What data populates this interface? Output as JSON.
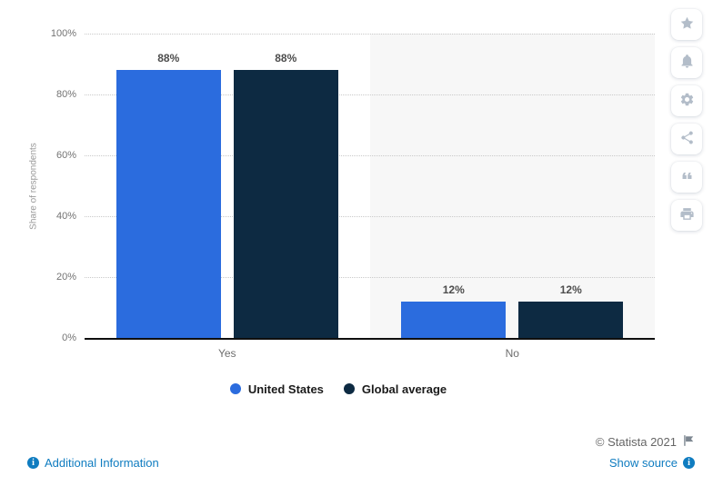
{
  "chart_data": {
    "type": "bar",
    "categories": [
      "Yes",
      "No"
    ],
    "series": [
      {
        "name": "United States",
        "color": "#2b6cde",
        "values": [
          88,
          12
        ],
        "labels": [
          "88%",
          "12%"
        ]
      },
      {
        "name": "Global average",
        "color": "#0d2a42",
        "values": [
          88,
          12
        ],
        "labels": [
          "88%",
          "12%"
        ]
      }
    ],
    "ylabel": "Share of respondents",
    "ylim": [
      0,
      100
    ],
    "yticks": [
      "100%",
      "80%",
      "60%",
      "40%",
      "20%",
      "0%"
    ],
    "grid": "horizontal-dotted",
    "legend_position": "bottom",
    "highlighted_category": "No"
  },
  "footer": {
    "copyright": "© Statista 2021",
    "additional_information": "Additional Information",
    "show_source": "Show source",
    "info_glyph": "i"
  },
  "toolbar": {
    "icons": [
      "star",
      "bell",
      "settings",
      "share",
      "quote",
      "print"
    ]
  },
  "colors": {
    "link": "#0f7cc0",
    "highlight_band": "#f7f7f7",
    "axis": "#0f0f0f",
    "gridline": "#c9c9c9"
  }
}
